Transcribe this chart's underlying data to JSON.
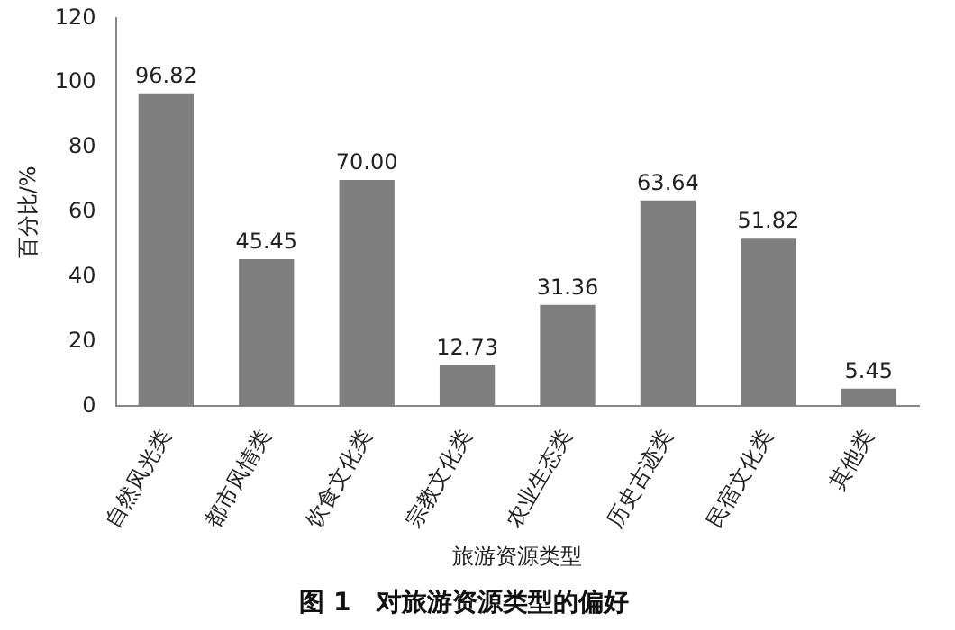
{
  "chart_data": {
    "type": "bar",
    "title": "图 1　对旅游资源类型的偏好",
    "xlabel": "旅游资源类型",
    "ylabel": "百分比/%",
    "categories": [
      "自然风光类",
      "都市风情类",
      "饮食文化类",
      "宗教文化类",
      "农业生态类",
      "历史古迹类",
      "民宿文化类",
      "其他类"
    ],
    "values": [
      96.82,
      45.45,
      70.0,
      12.73,
      31.36,
      63.64,
      51.82,
      5.45
    ],
    "value_labels": [
      "96.82",
      "45.45",
      "70.00",
      "12.73",
      "31.36",
      "63.64",
      "51.82",
      "5.45"
    ],
    "color": "#7f7f7f",
    "ylim": [
      0,
      120
    ],
    "yticks": [
      0,
      20,
      40,
      60,
      80,
      100,
      120
    ],
    "grid": false,
    "legend": false
  }
}
